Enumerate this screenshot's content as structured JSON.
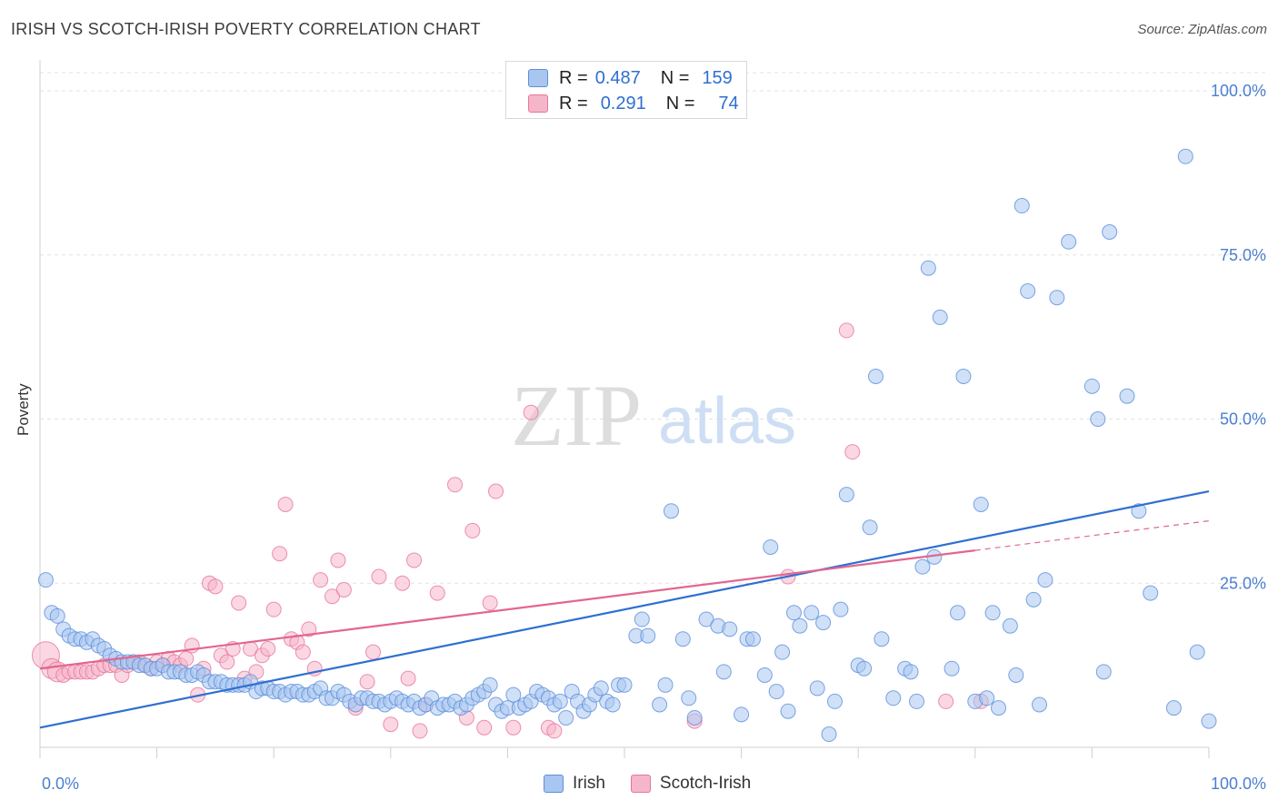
{
  "title": "IRISH VS SCOTCH-IRISH POVERTY CORRELATION CHART",
  "source": "Source: ZipAtlas.com",
  "watermark": {
    "zip": "ZIP",
    "atlas": "atlas"
  },
  "legend_top": {
    "rows": [
      {
        "r_label": "R =",
        "r_value": "0.487",
        "n_label": "N =",
        "n_value": "159"
      },
      {
        "r_label": "R =",
        "r_value": "0.291",
        "n_label": "N =",
        "n_value": "74"
      }
    ]
  },
  "chart_data": {
    "type": "scatter",
    "title": "IRISH VS SCOTCH-IRISH POVERTY CORRELATION CHART",
    "xlabel": "",
    "ylabel": "Poverty",
    "xlim": [
      0,
      100
    ],
    "ylim": [
      0,
      100
    ],
    "x_tick_labels": [
      "0.0%",
      "100.0%"
    ],
    "y_tick_labels": [
      "100.0%",
      "75.0%",
      "50.0%",
      "25.0%"
    ],
    "y_ticks": [
      100,
      75,
      50,
      25
    ],
    "grid": true,
    "legend_position": "bottom",
    "colors": {
      "irish": "#5b8fdc",
      "irish_fill": "#a9c6f0",
      "scotch": "#e8759b",
      "scotch_fill": "#f5b6ca"
    },
    "series": [
      {
        "name": "Irish",
        "trend": {
          "x": [
            0,
            100
          ],
          "y": [
            3,
            39
          ]
        },
        "points": [
          [
            0.5,
            25.5
          ],
          [
            1,
            20.5
          ],
          [
            1.5,
            20
          ],
          [
            2,
            18
          ],
          [
            2.5,
            17
          ],
          [
            3,
            16.5
          ],
          [
            3.5,
            16.5
          ],
          [
            4,
            16
          ],
          [
            4.5,
            16.5
          ],
          [
            5,
            15.5
          ],
          [
            5.5,
            15
          ],
          [
            6,
            14
          ],
          [
            6.5,
            13.5
          ],
          [
            7,
            13
          ],
          [
            7.5,
            13
          ],
          [
            8,
            13
          ],
          [
            8.5,
            12.5
          ],
          [
            9,
            12.5
          ],
          [
            9.5,
            12
          ],
          [
            10,
            12
          ],
          [
            10.5,
            12.5
          ],
          [
            11,
            11.5
          ],
          [
            11.5,
            11.5
          ],
          [
            12,
            11.5
          ],
          [
            12.5,
            11
          ],
          [
            13,
            11
          ],
          [
            13.5,
            11.5
          ],
          [
            14,
            11
          ],
          [
            14.5,
            10
          ],
          [
            15,
            10
          ],
          [
            15.5,
            10
          ],
          [
            16,
            9.5
          ],
          [
            16.5,
            9.5
          ],
          [
            17,
            9.5
          ],
          [
            17.5,
            9.5
          ],
          [
            18,
            10
          ],
          [
            18.5,
            8.5
          ],
          [
            19,
            9
          ],
          [
            19.5,
            9
          ],
          [
            20,
            8.5
          ],
          [
            20.5,
            8.5
          ],
          [
            21,
            8
          ],
          [
            21.5,
            8.5
          ],
          [
            22,
            8.5
          ],
          [
            22.5,
            8
          ],
          [
            23,
            8
          ],
          [
            23.5,
            8.5
          ],
          [
            24,
            9
          ],
          [
            24.5,
            7.5
          ],
          [
            25,
            7.5
          ],
          [
            25.5,
            8.5
          ],
          [
            26,
            8
          ],
          [
            26.5,
            7
          ],
          [
            27,
            6.5
          ],
          [
            27.5,
            7.5
          ],
          [
            28,
            7.5
          ],
          [
            28.5,
            7
          ],
          [
            29,
            7
          ],
          [
            29.5,
            6.5
          ],
          [
            30,
            7
          ],
          [
            30.5,
            7.5
          ],
          [
            31,
            7
          ],
          [
            31.5,
            6.5
          ],
          [
            32,
            7
          ],
          [
            32.5,
            6
          ],
          [
            33,
            6.5
          ],
          [
            33.5,
            7.5
          ],
          [
            34,
            6
          ],
          [
            34.5,
            6.5
          ],
          [
            35,
            6.5
          ],
          [
            35.5,
            7
          ],
          [
            36,
            6
          ],
          [
            36.5,
            6.5
          ],
          [
            37,
            7.5
          ],
          [
            37.5,
            8
          ],
          [
            38,
            8.5
          ],
          [
            38.5,
            9.5
          ],
          [
            39,
            6.5
          ],
          [
            39.5,
            5.5
          ],
          [
            40,
            6
          ],
          [
            40.5,
            8
          ],
          [
            41,
            6
          ],
          [
            41.5,
            6.5
          ],
          [
            42,
            7
          ],
          [
            42.5,
            8.5
          ],
          [
            43,
            8
          ],
          [
            43.5,
            7.5
          ],
          [
            44,
            6.5
          ],
          [
            44.5,
            7
          ],
          [
            45,
            4.5
          ],
          [
            45.5,
            8.5
          ],
          [
            46,
            7
          ],
          [
            46.5,
            5.5
          ],
          [
            47,
            6.5
          ],
          [
            47.5,
            8
          ],
          [
            48,
            9
          ],
          [
            48.5,
            7
          ],
          [
            49,
            6.5
          ],
          [
            49.5,
            9.5
          ],
          [
            50,
            9.5
          ],
          [
            51,
            17
          ],
          [
            51.5,
            19.5
          ],
          [
            52,
            17
          ],
          [
            53,
            6.5
          ],
          [
            53.5,
            9.5
          ],
          [
            54,
            36
          ],
          [
            55,
            16.5
          ],
          [
            55.5,
            7.5
          ],
          [
            56,
            4.5
          ],
          [
            57,
            19.5
          ],
          [
            58,
            18.5
          ],
          [
            58.5,
            11.5
          ],
          [
            59,
            18
          ],
          [
            60,
            5
          ],
          [
            60.5,
            16.5
          ],
          [
            61,
            16.5
          ],
          [
            62,
            11
          ],
          [
            62.5,
            30.5
          ],
          [
            63,
            8.5
          ],
          [
            63.5,
            14.5
          ],
          [
            64,
            5.5
          ],
          [
            64.5,
            20.5
          ],
          [
            65,
            18.5
          ],
          [
            66,
            20.5
          ],
          [
            66.5,
            9
          ],
          [
            67,
            19
          ],
          [
            67.5,
            2
          ],
          [
            68,
            7
          ],
          [
            68.5,
            21
          ],
          [
            69,
            38.5
          ],
          [
            70,
            12.5
          ],
          [
            70.5,
            12
          ],
          [
            71,
            33.5
          ],
          [
            71.5,
            56.5
          ],
          [
            72,
            16.5
          ],
          [
            73,
            7.5
          ],
          [
            74,
            12
          ],
          [
            74.5,
            11.5
          ],
          [
            75,
            7
          ],
          [
            75.5,
            27.5
          ],
          [
            76,
            73
          ],
          [
            76.5,
            29
          ],
          [
            77,
            65.5
          ],
          [
            78,
            12
          ],
          [
            78.5,
            20.5
          ],
          [
            79,
            56.5
          ],
          [
            80,
            7
          ],
          [
            80.5,
            37
          ],
          [
            81,
            7.5
          ],
          [
            81.5,
            20.5
          ],
          [
            82,
            6
          ],
          [
            83,
            18.5
          ],
          [
            83.5,
            11
          ],
          [
            84,
            82.5
          ],
          [
            84.5,
            69.5
          ],
          [
            85,
            22.5
          ],
          [
            85.5,
            6.5
          ],
          [
            86,
            25.5
          ],
          [
            87,
            68.5
          ],
          [
            88,
            77
          ],
          [
            90,
            55
          ],
          [
            90.5,
            50
          ],
          [
            91,
            11.5
          ],
          [
            91.5,
            78.5
          ],
          [
            93,
            53.5
          ],
          [
            94,
            36
          ],
          [
            95,
            23.5
          ],
          [
            97,
            6
          ],
          [
            98,
            90
          ],
          [
            99,
            14.5
          ],
          [
            100,
            4
          ]
        ]
      },
      {
        "name": "Scotch-Irish",
        "trend": {
          "x": [
            0,
            80
          ],
          "y": [
            12,
            30
          ]
        },
        "trend_dashed": {
          "x": [
            80,
            100
          ],
          "y": [
            30,
            34.5
          ]
        },
        "points": [
          [
            0.5,
            14
          ],
          [
            1,
            12
          ],
          [
            1.5,
            11.5
          ],
          [
            2,
            11
          ],
          [
            2.5,
            11.5
          ],
          [
            3,
            11.5
          ],
          [
            3.5,
            11.5
          ],
          [
            4,
            11.5
          ],
          [
            4.5,
            11.5
          ],
          [
            5,
            12
          ],
          [
            5.5,
            12.5
          ],
          [
            6,
            12.5
          ],
          [
            6.5,
            12.5
          ],
          [
            7,
            11
          ],
          [
            7.5,
            12.5
          ],
          [
            8,
            13
          ],
          [
            8.5,
            13
          ],
          [
            9,
            12.5
          ],
          [
            9.5,
            12
          ],
          [
            10,
            13
          ],
          [
            10.5,
            12.5
          ],
          [
            11,
            13.5
          ],
          [
            11.5,
            13
          ],
          [
            12,
            12.5
          ],
          [
            12.5,
            13.5
          ],
          [
            13,
            15.5
          ],
          [
            13.5,
            8
          ],
          [
            14,
            12
          ],
          [
            14.5,
            25
          ],
          [
            15,
            24.5
          ],
          [
            15.5,
            14
          ],
          [
            16,
            13
          ],
          [
            16.5,
            15
          ],
          [
            17,
            22
          ],
          [
            17.5,
            10.5
          ],
          [
            18,
            15
          ],
          [
            18.5,
            11.5
          ],
          [
            19,
            14
          ],
          [
            19.5,
            15
          ],
          [
            20,
            21
          ],
          [
            20.5,
            29.5
          ],
          [
            21,
            37
          ],
          [
            21.5,
            16.5
          ],
          [
            22,
            16
          ],
          [
            22.5,
            14.5
          ],
          [
            23,
            18
          ],
          [
            23.5,
            12
          ],
          [
            24,
            25.5
          ],
          [
            25,
            23
          ],
          [
            25.5,
            28.5
          ],
          [
            26,
            24
          ],
          [
            27,
            6
          ],
          [
            28,
            10
          ],
          [
            28.5,
            14.5
          ],
          [
            29,
            26
          ],
          [
            30,
            3.5
          ],
          [
            31,
            25
          ],
          [
            31.5,
            10.5
          ],
          [
            32,
            28.5
          ],
          [
            32.5,
            2.5
          ],
          [
            33,
            6.5
          ],
          [
            34,
            23.5
          ],
          [
            35.5,
            40
          ],
          [
            36.5,
            4.5
          ],
          [
            37,
            33
          ],
          [
            38,
            3
          ],
          [
            38.5,
            22
          ],
          [
            39,
            39
          ],
          [
            40.5,
            3
          ],
          [
            42,
            51
          ],
          [
            43.5,
            3
          ],
          [
            44,
            2.5
          ],
          [
            56,
            4
          ],
          [
            64,
            26
          ],
          [
            69,
            63.5
          ],
          [
            69.5,
            45
          ],
          [
            77.5,
            7
          ],
          [
            80.5,
            7
          ]
        ]
      }
    ]
  },
  "bottom_legend": {
    "items": [
      {
        "label": "Irish"
      },
      {
        "label": "Scotch-Irish"
      }
    ]
  }
}
